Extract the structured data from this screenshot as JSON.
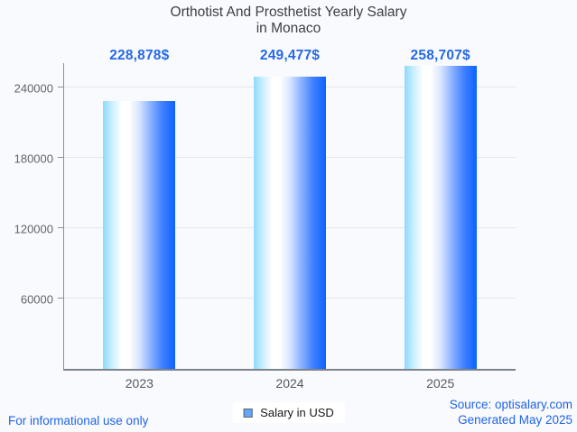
{
  "page": {
    "background": "#f9fafd"
  },
  "title": {
    "line1": "Orthotist And Prosthetist Yearly Salary",
    "line2": "in Monaco"
  },
  "chart_data": {
    "type": "bar",
    "title": "Orthotist And Prosthetist Yearly Salary in Monaco",
    "categories": [
      "2023",
      "2024",
      "2025"
    ],
    "values": [
      228878,
      249477,
      258707
    ],
    "value_labels": [
      "228,878$",
      "249,477$",
      "258,707$"
    ],
    "series": [
      {
        "name": "Salary in USD",
        "values": [
          228878,
          249477,
          258707
        ]
      }
    ],
    "xlabel": "",
    "ylabel": "",
    "y_ticks": [
      60000,
      120000,
      180000,
      240000
    ],
    "ylim": [
      0,
      261000
    ],
    "grid": "horizontal",
    "legend_position": "bottom-center",
    "bar_gradient": [
      "#8edafc",
      "#ffffff",
      "#0c63ff"
    ],
    "value_label_color": "#2569e8"
  },
  "legend": {
    "label": "Salary in USD"
  },
  "footer": {
    "left_note": "For informational use only",
    "source_line": "Source: optisalary.com",
    "generated_line": "Generated May 2025"
  }
}
